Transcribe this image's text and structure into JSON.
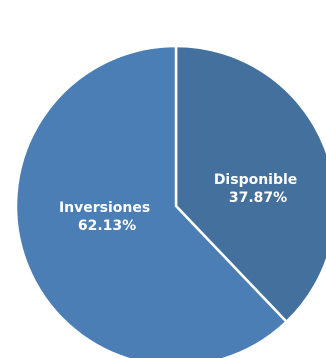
{
  "chart_data": {
    "type": "pie",
    "slices": [
      {
        "label": "Disponible",
        "value": 37.87,
        "value_label": "37.87%",
        "color": "#44709e"
      },
      {
        "label": "Inversiones",
        "value": 62.13,
        "value_label": "62.13%",
        "color": "#4a7eb4"
      }
    ],
    "start_angle": "12 o'clock",
    "direction": "clockwise",
    "legend": "none"
  }
}
